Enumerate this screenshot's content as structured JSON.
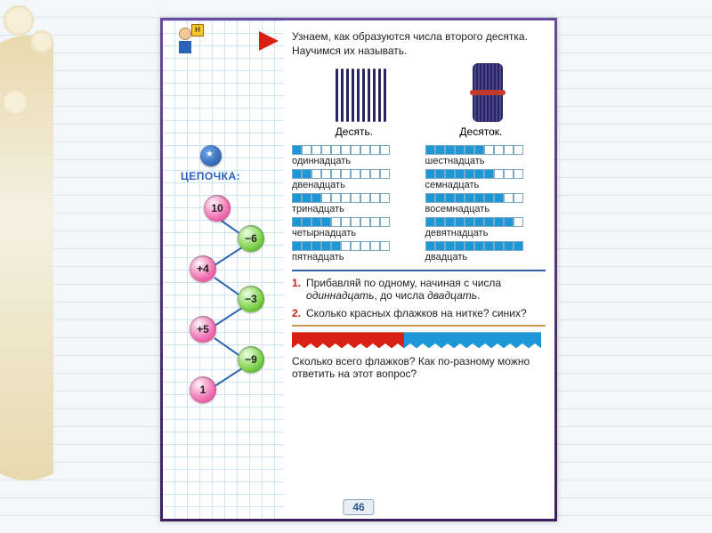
{
  "page_number": "46",
  "intro_text": "Узнаем, как образуются числа второго десятка. Научимся их называть.",
  "sign_letter": "Н",
  "stick_labels": {
    "left": "Десять.",
    "right": "Десяток."
  },
  "sticks_count": 10,
  "chain": {
    "title": "ЦЕПОЧКА:",
    "nodes": [
      {
        "label": "10",
        "color": "pink",
        "pos": "n10"
      },
      {
        "label": "−6",
        "color": "green",
        "pos": "n6"
      },
      {
        "label": "+4",
        "color": "pink",
        "pos": "n4"
      },
      {
        "label": "−3",
        "color": "green",
        "pos": "n3"
      },
      {
        "label": "+5",
        "color": "pink",
        "pos": "n5"
      },
      {
        "label": "−9",
        "color": "green",
        "pos": "n9"
      },
      {
        "label": "1",
        "color": "pink",
        "pos": "n1"
      }
    ]
  },
  "numbers": [
    {
      "filled": 1,
      "total": 10,
      "label": "одиннадцать"
    },
    {
      "filled": 6,
      "total": 10,
      "label": "шестнадцать"
    },
    {
      "filled": 2,
      "total": 10,
      "label": "двенадцать"
    },
    {
      "filled": 7,
      "total": 10,
      "label": "семнадцать"
    },
    {
      "filled": 3,
      "total": 10,
      "label": "тринадцать"
    },
    {
      "filled": 8,
      "total": 10,
      "label": "восемнадцать"
    },
    {
      "filled": 4,
      "total": 10,
      "label": "четырнадцать"
    },
    {
      "filled": 9,
      "total": 10,
      "label": "девятнадцать"
    },
    {
      "filled": 5,
      "total": 10,
      "label": "пятнадцать"
    },
    {
      "filled": 10,
      "total": 10,
      "label": "двадцать"
    }
  ],
  "tasks": [
    {
      "n": "1.",
      "html": "Прибавляй по одному, начиная с числа одиннадцать, до числа двадцать."
    },
    {
      "n": "2.",
      "html": "Сколько красных флажков на нитке? синих?"
    }
  ],
  "flags": {
    "red": 9,
    "blue": 11
  },
  "question2": "Сколько всего флажков? Как по-разному можно ответить на этот вопрос?",
  "colors": {
    "fill_square": "#1d97d6",
    "triangle": "#d92015",
    "border": "#4a2a7a",
    "task_num": "#c41f1a",
    "rule": "#2a64b0"
  }
}
